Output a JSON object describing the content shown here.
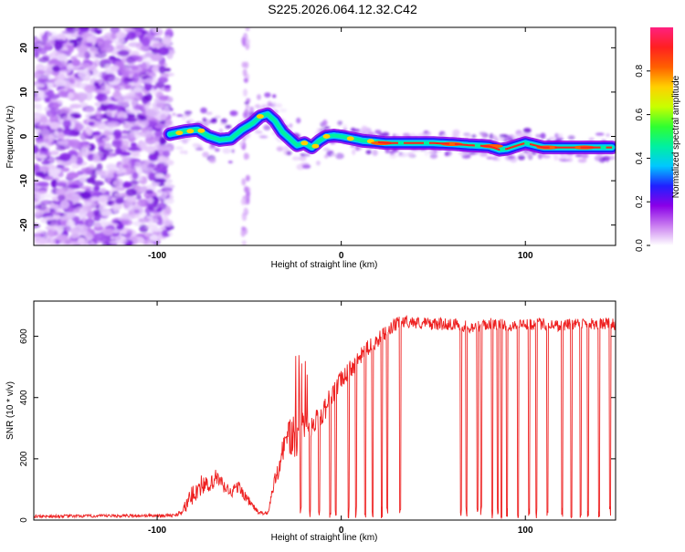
{
  "title": "S225.2026.064.12.32.C42",
  "chart_data": [
    {
      "type": "heatmap",
      "title": "S225.2026.064.12.32.C42",
      "xlabel": "Height of straight line (km)",
      "ylabel": "Frequency (Hz)",
      "xlim": [
        -167,
        149
      ],
      "ylim": [
        -24.6,
        24.6
      ],
      "xticks": [
        -100,
        0,
        100
      ],
      "yticks": [
        -20,
        -10,
        0,
        10,
        20
      ],
      "xtick_labels": [
        "-100",
        "0",
        "100"
      ],
      "ytick_labels": [
        "-20",
        "-10",
        "0",
        "10",
        "20"
      ],
      "colorbar": {
        "label": "Normalized spectral amplitude",
        "range": [
          0,
          1
        ],
        "ticks": [
          0.0,
          0.2,
          0.4,
          0.6,
          0.8
        ],
        "tick_labels": [
          "0.0",
          "0.2",
          "0.4",
          "0.6",
          "0.8"
        ],
        "colors": [
          "#ffffff",
          "#c97cf0",
          "#8a00e8",
          "#2020ff",
          "#00c8ff",
          "#00f0a0",
          "#30ff30",
          "#c8ff00",
          "#ffd000",
          "#ff6000",
          "#ff2020",
          "#ff2080"
        ]
      },
      "ridge": {
        "x": [
          -93,
          -85,
          -78,
          -72,
          -66,
          -60,
          -54,
          -48,
          -44,
          -40,
          -36,
          -32,
          -28,
          -24,
          -20,
          -16,
          -12,
          -8,
          -4,
          0,
          6,
          12,
          18,
          24,
          30,
          40,
          50,
          60,
          70,
          80,
          86,
          90,
          96,
          100,
          110,
          120,
          130,
          140,
          147
        ],
        "y": [
          0.5,
          1.2,
          1.5,
          0.0,
          -0.8,
          -0.5,
          1.5,
          3.0,
          4.5,
          5.0,
          3.5,
          1.0,
          -0.5,
          -2.0,
          -1.5,
          -2.5,
          -1.0,
          0.0,
          0.2,
          0.0,
          -0.5,
          -1.0,
          -1.2,
          -1.5,
          -1.5,
          -1.5,
          -1.5,
          -1.7,
          -2.0,
          -2.2,
          -3.0,
          -2.8,
          -2.0,
          -1.5,
          -2.5,
          -2.5,
          -2.5,
          -2.5,
          -2.5
        ]
      },
      "noise_region_x": [
        -167,
        -93
      ]
    },
    {
      "type": "line",
      "xlabel": "Height of straight line (km)",
      "ylabel": "SNR (10 * v/v)",
      "xlim": [
        -167,
        149
      ],
      "ylim": [
        0,
        715
      ],
      "xticks": [
        -100,
        0,
        100
      ],
      "yticks": [
        0,
        200,
        400,
        600
      ],
      "xtick_labels": [
        "-100",
        "0",
        "100"
      ],
      "ytick_labels": [
        "0",
        "200",
        "400",
        "600"
      ],
      "series": [
        {
          "name": "SNR",
          "color": "#ee2020",
          "envelope_x": [
            -167,
            -90,
            -85,
            -80,
            -75,
            -72,
            -68,
            -64,
            -60,
            -56,
            -50,
            -45,
            -40,
            -36,
            -32,
            -29,
            -26,
            -22,
            -18,
            -14,
            -10,
            -6,
            -2,
            2,
            6,
            10,
            14,
            18,
            22,
            26,
            30,
            35,
            40,
            50,
            60,
            70,
            80,
            90,
            100,
            110,
            120,
            130,
            140,
            149
          ],
          "envelope_y": [
            12,
            15,
            40,
            90,
            120,
            100,
            140,
            110,
            90,
            110,
            60,
            25,
            20,
            130,
            220,
            290,
            250,
            310,
            300,
            320,
            350,
            400,
            440,
            470,
            500,
            530,
            560,
            580,
            600,
            620,
            640,
            650,
            645,
            640,
            640,
            630,
            640,
            635,
            640,
            640,
            635,
            645,
            640,
            640
          ],
          "noise_amplitude": [
            10,
            10,
            40,
            70,
            70,
            60,
            60,
            50,
            40,
            40,
            30,
            12,
            10,
            60,
            80,
            120,
            180,
            90,
            80,
            80,
            80,
            70,
            70,
            60,
            60,
            55,
            50,
            50,
            50,
            45,
            45,
            40,
            40,
            40,
            40,
            40,
            40,
            40,
            40,
            40,
            40,
            40,
            40,
            40
          ],
          "dropouts_x": [
            -22,
            -17,
            -12,
            -6,
            -3,
            4,
            8,
            13,
            17,
            22,
            25,
            32,
            65,
            68,
            74,
            76,
            82,
            85,
            87,
            90,
            96,
            102,
            106,
            112,
            120,
            125,
            130,
            134,
            140,
            146
          ]
        }
      ]
    }
  ]
}
